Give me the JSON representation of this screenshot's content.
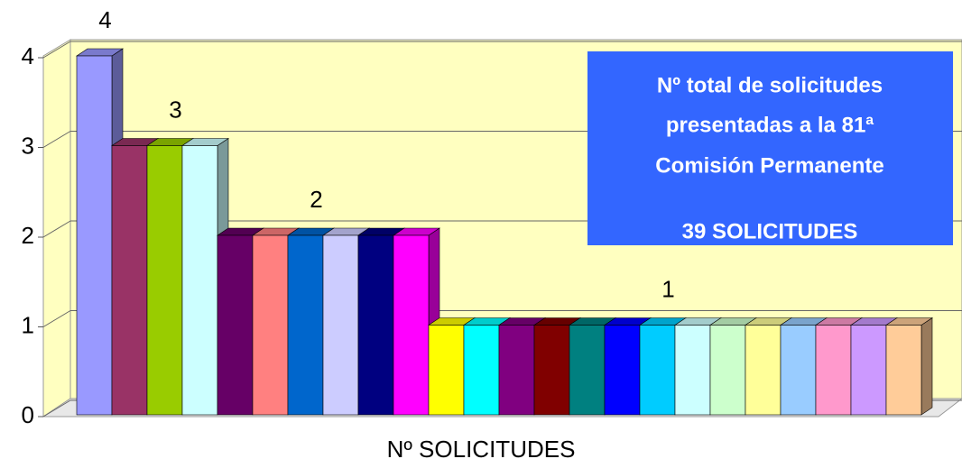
{
  "chart_data": {
    "type": "bar3d",
    "values": [
      4,
      3,
      3,
      3,
      2,
      2,
      2,
      2,
      2,
      2,
      1,
      1,
      1,
      1,
      1,
      1,
      1,
      1,
      1,
      1,
      1,
      1,
      1,
      1
    ],
    "value_labels": [
      "4",
      null,
      "3",
      null,
      null,
      null,
      "2",
      null,
      null,
      null,
      null,
      null,
      null,
      null,
      null,
      null,
      "1",
      null,
      null,
      null,
      null,
      null,
      null,
      null
    ],
    "colors": [
      "#9999ff",
      "#993366",
      "#99cc00",
      "#ccffff",
      "#660066",
      "#ff8080",
      "#0066cc",
      "#ccccff",
      "#000080",
      "#ff00ff",
      "#ffff00",
      "#00ffff",
      "#800080",
      "#800000",
      "#008080",
      "#0000ff",
      "#00ccff",
      "#ccffff",
      "#ccffcc",
      "#ffff99",
      "#99ccff",
      "#ff99cc",
      "#cc99ff",
      "#ffcc99"
    ],
    "ylim": [
      0,
      4
    ],
    "yticks": [
      0,
      1,
      2,
      3,
      4
    ],
    "grid": true,
    "x_label": "Nº SOLICITUDES",
    "annotation": {
      "lines": [
        "Nº  total de solicitudes",
        "presentadas a la 81ª",
        "Comisión Permanente",
        "39 SOLICITUDES"
      ]
    }
  }
}
